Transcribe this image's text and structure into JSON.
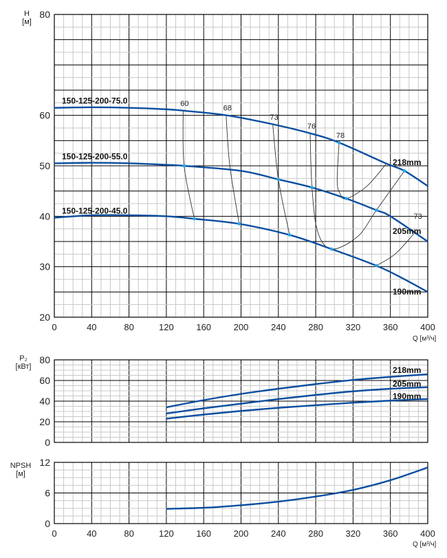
{
  "chart_data": [
    {
      "type": "line",
      "title": "",
      "ylabel": "H",
      "yunit": "[м]",
      "xlabel": "Q [м³/ч]",
      "xlim": [
        0,
        400
      ],
      "ylim": [
        20,
        80
      ],
      "xticks": [
        0,
        40,
        80,
        120,
        160,
        200,
        240,
        280,
        320,
        360,
        400
      ],
      "yticks": [
        20,
        30,
        40,
        50,
        60,
        80
      ],
      "grid": true,
      "series": [
        {
          "name": "150-125-200-75.0",
          "diameter_label": "218mm",
          "x": [
            0,
            40,
            80,
            120,
            140,
            185,
            235,
            275,
            305,
            355,
            375,
            400
          ],
          "y": [
            61.5,
            61.6,
            61.5,
            61.2,
            60.9,
            60,
            58.2,
            56.4,
            54.6,
            50.5,
            49,
            46
          ]
        },
        {
          "name": "150-125-200-55.0",
          "diameter_label": "205mm",
          "x": [
            0,
            40,
            80,
            120,
            139,
            200,
            240,
            276,
            313,
            345,
            360,
            400
          ],
          "y": [
            50.5,
            50.6,
            50.5,
            50.2,
            50,
            49,
            47.3,
            45.7,
            43.5,
            41.2,
            40,
            35
          ]
        },
        {
          "name": "150-125-200-45.0",
          "diameter_label": "190mm",
          "x": [
            0,
            40,
            80,
            120,
            150,
            198,
            252,
            297,
            345,
            370,
            400
          ],
          "y": [
            39.7,
            40.2,
            40.2,
            40,
            39.5,
            38.5,
            36.3,
            33.5,
            30.2,
            28,
            25
          ]
        }
      ],
      "efficiency_lines": [
        {
          "label": "60",
          "x": [
            138,
            139,
            150
          ],
          "y": [
            60.9,
            50,
            39.5
          ]
        },
        {
          "label": "68",
          "x": [
            184,
            188,
            198
          ],
          "y": [
            60,
            50,
            38.5
          ]
        },
        {
          "label": "73",
          "x": [
            234,
            240,
            252
          ],
          "y": [
            58.2,
            47.3,
            36.3
          ]
        },
        {
          "label": "76",
          "x": [
            274,
            276,
            282,
            297,
            325,
            345,
            375
          ],
          "y": [
            56.4,
            45.7,
            37,
            33.5,
            36,
            41.2,
            49
          ]
        },
        {
          "label": "78",
          "x": [
            305,
            303,
            306,
            313,
            335,
            356
          ],
          "y": [
            54.6,
            47,
            44.5,
            43.5,
            46,
            50.5
          ]
        },
        {
          "label": "73",
          "x": [
            345,
            365,
            385
          ],
          "y": [
            30.2,
            32.5,
            36.5
          ]
        }
      ]
    },
    {
      "type": "line",
      "ylabel": "P₂",
      "yunit": "[кВт]",
      "xlim": [
        0,
        400
      ],
      "ylim": [
        0,
        80
      ],
      "yticks": [
        0,
        20,
        40,
        60,
        80
      ],
      "grid": true,
      "series": [
        {
          "name": "218mm",
          "x": [
            120,
            160,
            200,
            240,
            280,
            320,
            360,
            400
          ],
          "y": [
            34,
            41,
            47,
            52,
            56.5,
            60.5,
            63.5,
            66
          ]
        },
        {
          "name": "205mm",
          "x": [
            120,
            160,
            200,
            240,
            280,
            320,
            360,
            400
          ],
          "y": [
            28,
            33,
            37.5,
            42,
            46,
            49.5,
            52,
            53.5
          ]
        },
        {
          "name": "190mm",
          "x": [
            120,
            160,
            200,
            240,
            280,
            320,
            360,
            400
          ],
          "y": [
            23,
            27,
            30.5,
            33.5,
            36,
            38.5,
            40.5,
            42
          ]
        }
      ]
    },
    {
      "type": "line",
      "ylabel": "NPSH",
      "yunit": "[м]",
      "xlabel": "Q [м³/ч]",
      "xlim": [
        0,
        400
      ],
      "ylim": [
        0,
        12
      ],
      "xticks": [
        0,
        40,
        80,
        120,
        160,
        200,
        240,
        280,
        320,
        360,
        400
      ],
      "yticks": [
        0,
        6,
        12
      ],
      "grid": true,
      "series": [
        {
          "name": "NPSH",
          "x": [
            120,
            160,
            200,
            240,
            280,
            320,
            360,
            400
          ],
          "y": [
            2.9,
            3.1,
            3.6,
            4.3,
            5.3,
            6.6,
            8.5,
            11
          ]
        }
      ]
    }
  ],
  "colors": {
    "curve": "#0a4ea0",
    "point": "#27a6e6",
    "major": "#000000",
    "minor": "#c8c8c8",
    "eff": "#333333"
  }
}
